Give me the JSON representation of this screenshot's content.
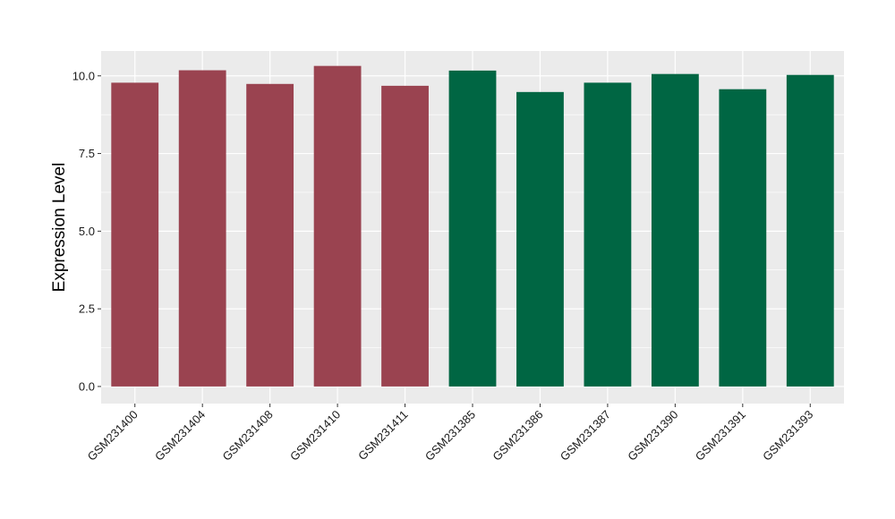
{
  "chart_data": {
    "type": "bar",
    "title": "",
    "xlabel": "",
    "ylabel": "Expression Level",
    "ylim": [
      -0.55,
      10.8
    ],
    "yticks": [
      0.0,
      2.5,
      5.0,
      7.5,
      10.0
    ],
    "ytick_labels": [
      "0.0",
      "2.5",
      "5.0",
      "7.5",
      "10.0"
    ],
    "grid": true,
    "legend": "none",
    "categories": [
      "GSM231400",
      "GSM231404",
      "GSM231408",
      "GSM231410",
      "GSM231411",
      "GSM231385",
      "GSM231386",
      "GSM231387",
      "GSM231390",
      "GSM231391",
      "GSM231393"
    ],
    "values": [
      9.78,
      10.18,
      9.74,
      10.32,
      9.68,
      10.17,
      9.48,
      9.78,
      10.06,
      9.57,
      10.03
    ],
    "bar_colors": [
      "#9a4350",
      "#9a4350",
      "#9a4350",
      "#9a4350",
      "#9a4350",
      "#006643",
      "#006643",
      "#006643",
      "#006643",
      "#006643",
      "#006643"
    ],
    "panel_background": "#ebebeb",
    "grid_color": "#ffffff"
  }
}
